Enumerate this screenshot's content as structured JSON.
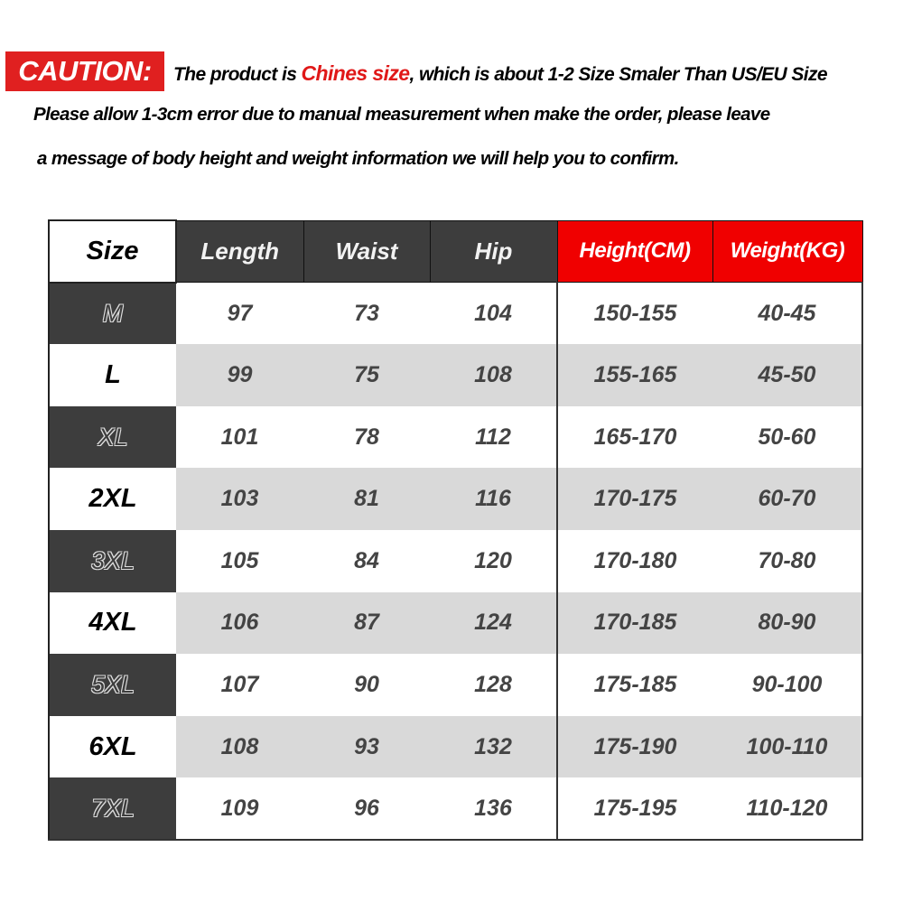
{
  "caution": {
    "badge": "CAUTION:",
    "line1_prefix": "The product is ",
    "line1_highlight": "Chines size",
    "line1_suffix": ", which is about 1-2 Size Smaler Than US/EU Size",
    "line2": "Please allow 1-3cm error due to manual measurement when make the order, please leave",
    "line3": "a message of body height and weight information we will help you to confirm.",
    "badge_color": "#e02020",
    "highlight_color": "#e01818"
  },
  "table": {
    "headers": [
      "Size",
      "Length",
      "Waist",
      "Hip",
      "Height(CM)",
      "Weight(KG)"
    ],
    "rows": [
      [
        "M",
        "97",
        "73",
        "104",
        "150-155",
        "40-45"
      ],
      [
        "L",
        "99",
        "75",
        "108",
        "155-165",
        "45-50"
      ],
      [
        "XL",
        "101",
        "78",
        "112",
        "165-170",
        "50-60"
      ],
      [
        "2XL",
        "103",
        "81",
        "116",
        "170-175",
        "60-70"
      ],
      [
        "3XL",
        "105",
        "84",
        "120",
        "170-180",
        "70-80"
      ],
      [
        "4XL",
        "106",
        "87",
        "124",
        "170-185",
        "80-90"
      ],
      [
        "5XL",
        "107",
        "90",
        "128",
        "175-185",
        "90-100"
      ],
      [
        "6XL",
        "108",
        "93",
        "132",
        "175-190",
        "100-110"
      ],
      [
        "7XL",
        "109",
        "96",
        "136",
        "175-195",
        "110-120"
      ]
    ],
    "header_dark_color": "#3d3d3d",
    "header_red_color": "#f00000",
    "stripe_color": "#d9d9d9"
  }
}
